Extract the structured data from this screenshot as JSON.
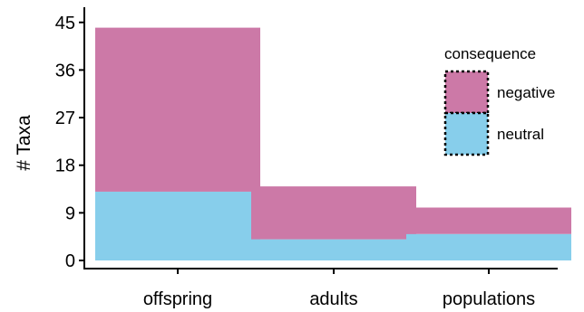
{
  "chart_data": {
    "type": "bar",
    "stacked": true,
    "categories": [
      "offspring",
      "adults",
      "populations"
    ],
    "series": [
      {
        "name": "neutral",
        "values": [
          13,
          4,
          5
        ],
        "color": "#87CEEB"
      },
      {
        "name": "negative",
        "values": [
          31,
          10,
          5
        ],
        "color": "#CC79A7"
      }
    ],
    "xlabel": "",
    "ylabel": "# Taxa",
    "yticks": [
      0,
      9,
      18,
      27,
      36,
      45
    ],
    "ylim": [
      0,
      46.5
    ],
    "grid": false,
    "legend": {
      "title": "consequence",
      "position": "right",
      "entries": [
        "negative",
        "neutral"
      ]
    }
  }
}
